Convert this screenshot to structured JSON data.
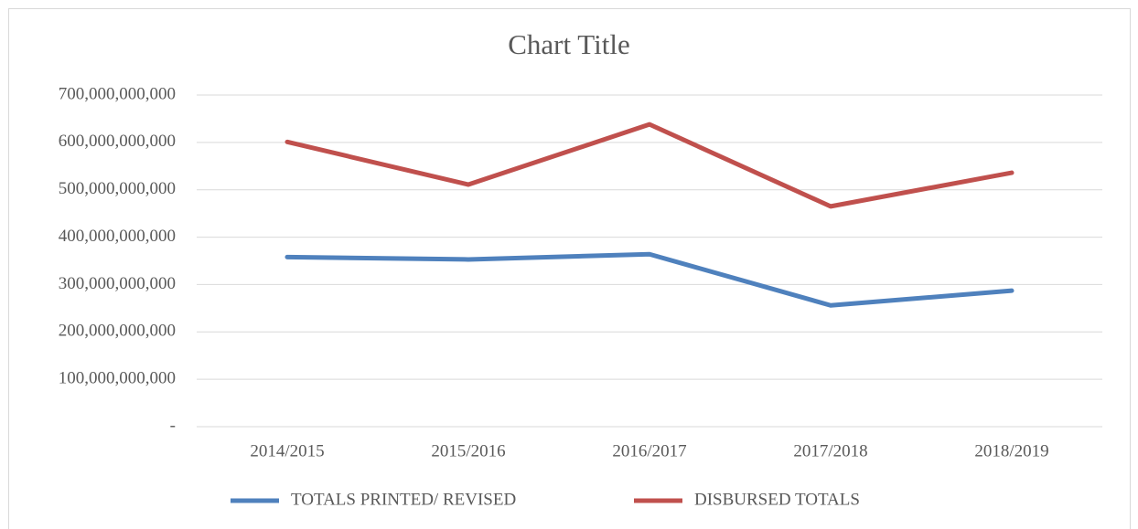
{
  "chart_data": {
    "type": "line",
    "title": "Chart Title",
    "categories": [
      "2014/2015",
      "2015/2016",
      "2016/2017",
      "2017/2018",
      "2018/2019"
    ],
    "series": [
      {
        "name": "TOTALS PRINTED/ REVISED",
        "color": "#4f81bd",
        "values": [
          358000000000,
          353000000000,
          364000000000,
          256000000000,
          287000000000
        ]
      },
      {
        "name": "DISBURSED TOTALS",
        "color": "#c0504d",
        "values": [
          601000000000,
          511000000000,
          638000000000,
          465000000000,
          536000000000
        ]
      }
    ],
    "ylim": [
      0,
      700000000000
    ],
    "yticks": [
      {
        "value": 0,
        "label": "-"
      },
      {
        "value": 100000000000,
        "label": "100,000,000,000"
      },
      {
        "value": 200000000000,
        "label": "200,000,000,000"
      },
      {
        "value": 300000000000,
        "label": "300,000,000,000"
      },
      {
        "value": 400000000000,
        "label": "400,000,000,000"
      },
      {
        "value": 500000000000,
        "label": "500,000,000,000"
      },
      {
        "value": 600000000000,
        "label": "600,000,000,000"
      },
      {
        "value": 700000000000,
        "label": "700,000,000,000"
      }
    ],
    "grid": true,
    "legend": "bottom"
  }
}
